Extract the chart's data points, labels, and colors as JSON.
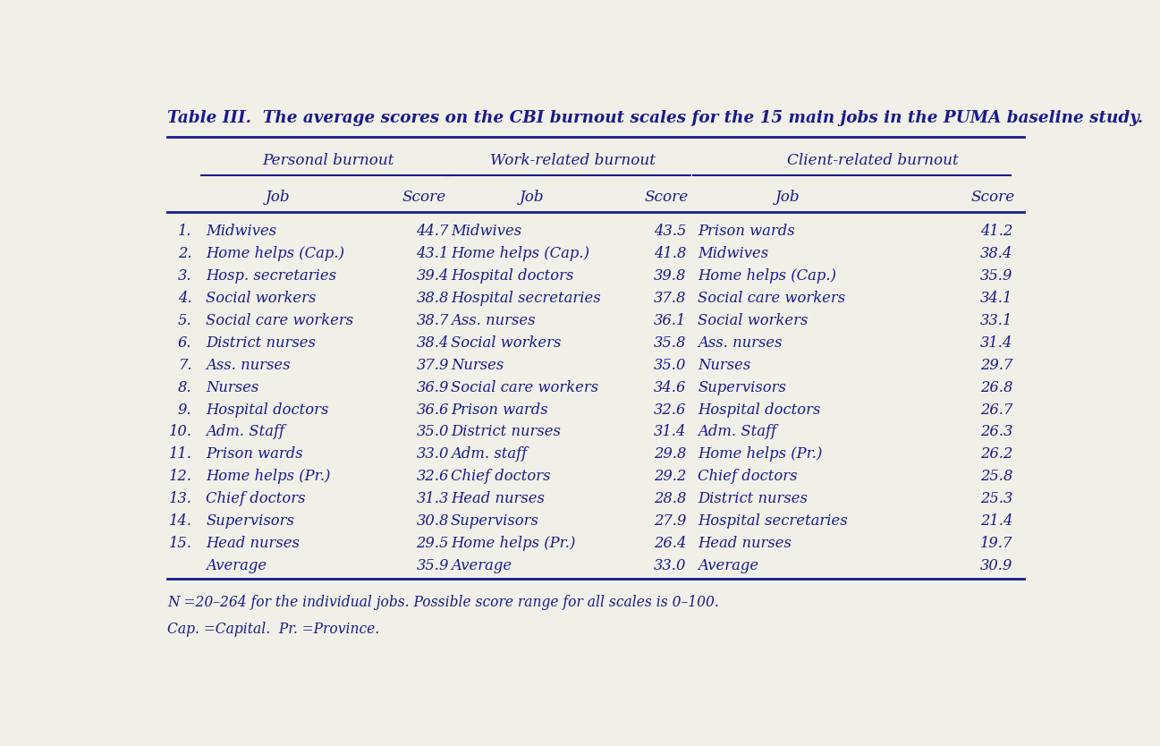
{
  "title": "Table III.  The average scores on the CBI burnout scales for the 15 main jobs in the PUMA baseline study.",
  "table_color": "#1a1a8c",
  "background_color": "#f0f0e8",
  "section_headers": [
    "Personal burnout",
    "Work-related burnout",
    "Client-related burnout"
  ],
  "row_numbers": [
    "1.",
    "2.",
    "3.",
    "4.",
    "5.",
    "6.",
    "7.",
    "8.",
    "9.",
    "10.",
    "11.",
    "12.",
    "13.",
    "14.",
    "15.",
    ""
  ],
  "personal_jobs": [
    "Midwives",
    "Home helps (Cap.)",
    "Hosp. secretaries",
    "Social workers",
    "Social care workers",
    "District nurses",
    "Ass. nurses",
    "Nurses",
    "Hospital doctors",
    "Adm. Staff",
    "Prison wards",
    "Home helps (Pr.)",
    "Chief doctors",
    "Supervisors",
    "Head nurses",
    "Average"
  ],
  "personal_scores": [
    "44.7",
    "43.1",
    "39.4",
    "38.8",
    "38.7",
    "38.4",
    "37.9",
    "36.9",
    "36.6",
    "35.0",
    "33.0",
    "32.6",
    "31.3",
    "30.8",
    "29.5",
    "35.9"
  ],
  "work_jobs": [
    "Midwives",
    "Home helps (Cap.)",
    "Hospital doctors",
    "Hospital secretaries",
    "Ass. nurses",
    "Social workers",
    "Nurses",
    "Social care workers",
    "Prison wards",
    "District nurses",
    "Adm. staff",
    "Chief doctors",
    "Head nurses",
    "Supervisors",
    "Home helps (Pr.)",
    "Average"
  ],
  "work_scores": [
    "43.5",
    "41.8",
    "39.8",
    "37.8",
    "36.1",
    "35.8",
    "35.0",
    "34.6",
    "32.6",
    "31.4",
    "29.8",
    "29.2",
    "28.8",
    "27.9",
    "26.4",
    "33.0"
  ],
  "client_jobs": [
    "Prison wards",
    "Midwives",
    "Home helps (Cap.)",
    "Social care workers",
    "Social workers",
    "Ass. nurses",
    "Nurses",
    "Supervisors",
    "Hospital doctors",
    "Adm. Staff",
    "Home helps (Pr.)",
    "Chief doctors",
    "District nurses",
    "Hospital secretaries",
    "Head nurses",
    "Average"
  ],
  "client_scores": [
    "41.2",
    "38.4",
    "35.9",
    "34.1",
    "33.1",
    "31.4",
    "29.7",
    "26.8",
    "26.7",
    "26.3",
    "26.2",
    "25.8",
    "25.3",
    "21.4",
    "19.7",
    "30.9"
  ],
  "footnote1": "N =20–264 for the individual jobs. Possible score range for all scales is 0–100.",
  "footnote2": "Cap. =Capital.  Pr. =Province."
}
